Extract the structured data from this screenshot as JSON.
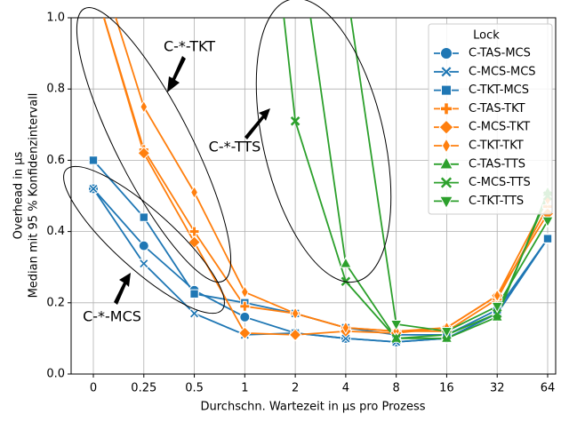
{
  "chart_data": {
    "type": "line",
    "xlabel": "Durchschn. Wartezeit in µs pro Prozess",
    "ylabel": [
      "Overhead in µs",
      "Median mit 95 % Konfidenzintervall"
    ],
    "categories": [
      "0",
      "0.25",
      "0.5",
      "1",
      "2",
      "4",
      "8",
      "16",
      "32",
      "64"
    ],
    "ylim": [
      0,
      1
    ],
    "yticks": [
      {
        "value": 0,
        "label": "0.0"
      },
      {
        "value": 0.2,
        "label": "0.2"
      },
      {
        "value": 0.4,
        "label": "0.4"
      },
      {
        "value": 0.6,
        "label": "0.6"
      },
      {
        "value": 0.8,
        "label": "0.8"
      },
      {
        "value": 1,
        "label": "1.0"
      }
    ],
    "grid": true,
    "legend": {
      "title": "Lock",
      "position": "upper right"
    },
    "annotations": [
      "C-*-TKT",
      "C-*-TTS",
      "C-*-MCS"
    ],
    "series": [
      {
        "name": "C-TAS-MCS",
        "color": "#1f77b4",
        "marker": "circle",
        "values": [
          0.52,
          0.36,
          0.235,
          0.16,
          0.115,
          0.1,
          0.09,
          0.1,
          0.17,
          0.38
        ]
      },
      {
        "name": "C-MCS-MCS",
        "color": "#1f77b4",
        "marker": "X",
        "values": [
          0.52,
          0.31,
          0.17,
          0.11,
          0.115,
          0.1,
          0.09,
          0.1,
          0.17,
          0.38
        ]
      },
      {
        "name": "C-TKT-MCS",
        "color": "#1f77b4",
        "marker": "square",
        "values": [
          0.6,
          0.44,
          0.225,
          0.2,
          0.17,
          0.13,
          0.11,
          0.11,
          0.18,
          0.38
        ]
      },
      {
        "name": "C-TAS-TKT",
        "color": "#ff7f0e",
        "marker": "plus",
        "values": [
          1.1,
          0.63,
          0.4,
          0.19,
          0.17,
          0.13,
          0.12,
          0.12,
          0.21,
          0.47
        ]
      },
      {
        "name": "C-MCS-TKT",
        "color": "#ff7f0e",
        "marker": "diamond",
        "values": [
          1.1,
          0.62,
          0.37,
          0.115,
          0.11,
          0.12,
          0.115,
          0.13,
          0.22,
          0.45
        ]
      },
      {
        "name": "C-TKT-TKT",
        "color": "#ff7f0e",
        "marker": "thin-diamond",
        "values": [
          1.2,
          0.75,
          0.51,
          0.23,
          0.17,
          0.13,
          0.12,
          0.13,
          0.22,
          0.49
        ]
      },
      {
        "name": "C-TAS-TTS",
        "color": "#2ca02c",
        "marker": "triangle-up",
        "values": [
          null,
          null,
          null,
          null,
          1.3,
          0.31,
          0.1,
          0.1,
          0.16,
          0.51
        ]
      },
      {
        "name": "C-MCS-TTS",
        "color": "#2ca02c",
        "marker": "x",
        "values": [
          null,
          null,
          null,
          2.0,
          0.71,
          0.26,
          0.1,
          0.11,
          0.17,
          0.5
        ]
      },
      {
        "name": "C-TKT-TTS",
        "color": "#2ca02c",
        "marker": "triangle-down",
        "values": [
          null,
          null,
          null,
          null,
          null,
          1.1,
          0.14,
          0.12,
          0.19,
          0.43
        ]
      }
    ]
  }
}
